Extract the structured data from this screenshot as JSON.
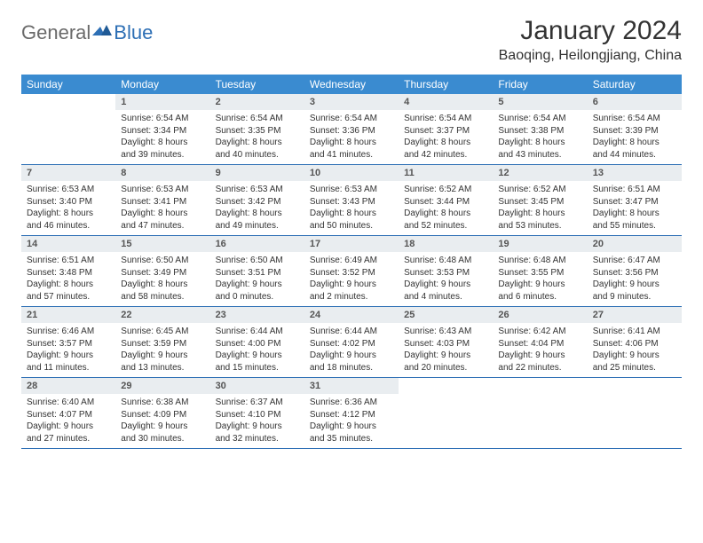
{
  "colors": {
    "header_bg": "#3a8bd0",
    "accent": "#2d6fb5",
    "daynum_bg": "#e9edf0",
    "text": "#333333",
    "logo_gray": "#6a6a6a"
  },
  "logo": {
    "part1": "General",
    "part2": "Blue"
  },
  "title": "January 2024",
  "location": "Baoqing, Heilongjiang, China",
  "weekdays": [
    "Sunday",
    "Monday",
    "Tuesday",
    "Wednesday",
    "Thursday",
    "Friday",
    "Saturday"
  ],
  "start_offset": 1,
  "days": [
    {
      "n": 1,
      "sunrise": "6:54 AM",
      "sunset": "3:34 PM",
      "daylight": "8 hours and 39 minutes."
    },
    {
      "n": 2,
      "sunrise": "6:54 AM",
      "sunset": "3:35 PM",
      "daylight": "8 hours and 40 minutes."
    },
    {
      "n": 3,
      "sunrise": "6:54 AM",
      "sunset": "3:36 PM",
      "daylight": "8 hours and 41 minutes."
    },
    {
      "n": 4,
      "sunrise": "6:54 AM",
      "sunset": "3:37 PM",
      "daylight": "8 hours and 42 minutes."
    },
    {
      "n": 5,
      "sunrise": "6:54 AM",
      "sunset": "3:38 PM",
      "daylight": "8 hours and 43 minutes."
    },
    {
      "n": 6,
      "sunrise": "6:54 AM",
      "sunset": "3:39 PM",
      "daylight": "8 hours and 44 minutes."
    },
    {
      "n": 7,
      "sunrise": "6:53 AM",
      "sunset": "3:40 PM",
      "daylight": "8 hours and 46 minutes."
    },
    {
      "n": 8,
      "sunrise": "6:53 AM",
      "sunset": "3:41 PM",
      "daylight": "8 hours and 47 minutes."
    },
    {
      "n": 9,
      "sunrise": "6:53 AM",
      "sunset": "3:42 PM",
      "daylight": "8 hours and 49 minutes."
    },
    {
      "n": 10,
      "sunrise": "6:53 AM",
      "sunset": "3:43 PM",
      "daylight": "8 hours and 50 minutes."
    },
    {
      "n": 11,
      "sunrise": "6:52 AM",
      "sunset": "3:44 PM",
      "daylight": "8 hours and 52 minutes."
    },
    {
      "n": 12,
      "sunrise": "6:52 AM",
      "sunset": "3:45 PM",
      "daylight": "8 hours and 53 minutes."
    },
    {
      "n": 13,
      "sunrise": "6:51 AM",
      "sunset": "3:47 PM",
      "daylight": "8 hours and 55 minutes."
    },
    {
      "n": 14,
      "sunrise": "6:51 AM",
      "sunset": "3:48 PM",
      "daylight": "8 hours and 57 minutes."
    },
    {
      "n": 15,
      "sunrise": "6:50 AM",
      "sunset": "3:49 PM",
      "daylight": "8 hours and 58 minutes."
    },
    {
      "n": 16,
      "sunrise": "6:50 AM",
      "sunset": "3:51 PM",
      "daylight": "9 hours and 0 minutes."
    },
    {
      "n": 17,
      "sunrise": "6:49 AM",
      "sunset": "3:52 PM",
      "daylight": "9 hours and 2 minutes."
    },
    {
      "n": 18,
      "sunrise": "6:48 AM",
      "sunset": "3:53 PM",
      "daylight": "9 hours and 4 minutes."
    },
    {
      "n": 19,
      "sunrise": "6:48 AM",
      "sunset": "3:55 PM",
      "daylight": "9 hours and 6 minutes."
    },
    {
      "n": 20,
      "sunrise": "6:47 AM",
      "sunset": "3:56 PM",
      "daylight": "9 hours and 9 minutes."
    },
    {
      "n": 21,
      "sunrise": "6:46 AM",
      "sunset": "3:57 PM",
      "daylight": "9 hours and 11 minutes."
    },
    {
      "n": 22,
      "sunrise": "6:45 AM",
      "sunset": "3:59 PM",
      "daylight": "9 hours and 13 minutes."
    },
    {
      "n": 23,
      "sunrise": "6:44 AM",
      "sunset": "4:00 PM",
      "daylight": "9 hours and 15 minutes."
    },
    {
      "n": 24,
      "sunrise": "6:44 AM",
      "sunset": "4:02 PM",
      "daylight": "9 hours and 18 minutes."
    },
    {
      "n": 25,
      "sunrise": "6:43 AM",
      "sunset": "4:03 PM",
      "daylight": "9 hours and 20 minutes."
    },
    {
      "n": 26,
      "sunrise": "6:42 AM",
      "sunset": "4:04 PM",
      "daylight": "9 hours and 22 minutes."
    },
    {
      "n": 27,
      "sunrise": "6:41 AM",
      "sunset": "4:06 PM",
      "daylight": "9 hours and 25 minutes."
    },
    {
      "n": 28,
      "sunrise": "6:40 AM",
      "sunset": "4:07 PM",
      "daylight": "9 hours and 27 minutes."
    },
    {
      "n": 29,
      "sunrise": "6:38 AM",
      "sunset": "4:09 PM",
      "daylight": "9 hours and 30 minutes."
    },
    {
      "n": 30,
      "sunrise": "6:37 AM",
      "sunset": "4:10 PM",
      "daylight": "9 hours and 32 minutes."
    },
    {
      "n": 31,
      "sunrise": "6:36 AM",
      "sunset": "4:12 PM",
      "daylight": "9 hours and 35 minutes."
    }
  ],
  "labels": {
    "sunrise": "Sunrise:",
    "sunset": "Sunset:",
    "daylight": "Daylight:"
  }
}
